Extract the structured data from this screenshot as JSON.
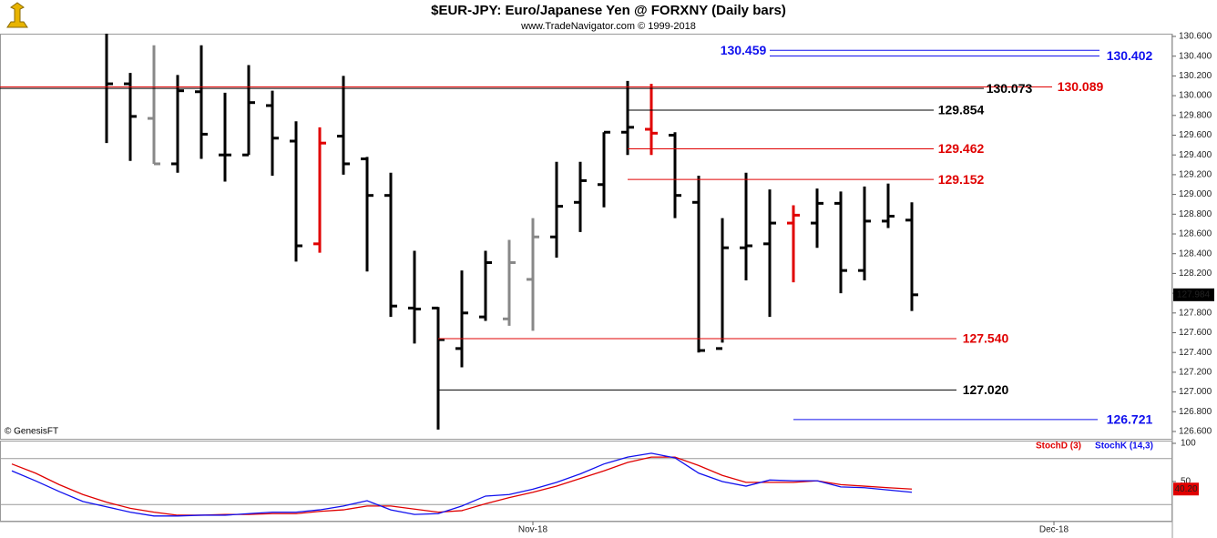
{
  "chart_data": {
    "type": "ohlc",
    "title": "$EUR-JPY:  Euro/Japanese Yen @ FORXNY  (Daily bars)",
    "subtitle": "www.TradeNavigator.com © 1999-2018",
    "credit": "© GenesisFT",
    "categories": [
      null,
      null,
      null,
      null,
      null,
      null,
      null,
      null,
      null,
      null,
      null,
      null,
      null,
      null,
      null,
      null,
      null,
      null,
      null,
      null,
      null,
      null,
      "Nov-18",
      null,
      null,
      null,
      null,
      null,
      null,
      null,
      null,
      null,
      null,
      null,
      null,
      null,
      null,
      null,
      null,
      null,
      null,
      null,
      null,
      null,
      "Dec-18",
      null,
      null,
      null,
      null
    ],
    "ylim": [
      126.6,
      130.6
    ],
    "yticks": [
      {
        "value": 126.6,
        "label": "126.600"
      },
      {
        "value": 126.8,
        "label": "126.800"
      },
      {
        "value": 127.0,
        "label": "127.000"
      },
      {
        "value": 127.2,
        "label": "127.200"
      },
      {
        "value": 127.4,
        "label": "127.400"
      },
      {
        "value": 127.6,
        "label": "127.600"
      },
      {
        "value": 127.8,
        "label": "127.800"
      },
      {
        "value": 128.0,
        "label": "128.000"
      },
      {
        "value": 128.2,
        "label": "128.200"
      },
      {
        "value": 128.4,
        "label": "128.400"
      },
      {
        "value": 128.6,
        "label": "128.600"
      },
      {
        "value": 128.8,
        "label": "128.800"
      },
      {
        "value": 129.0,
        "label": "129.000"
      },
      {
        "value": 129.2,
        "label": "129.200"
      },
      {
        "value": 129.4,
        "label": "129.400"
      },
      {
        "value": 129.6,
        "label": "129.600"
      },
      {
        "value": 129.8,
        "label": "129.800"
      },
      {
        "value": 130.0,
        "label": "130.000"
      },
      {
        "value": 130.2,
        "label": "130.200"
      },
      {
        "value": 130.4,
        "label": "130.400"
      },
      {
        "value": 130.6,
        "label": "130.600"
      }
    ],
    "ohlc": {
      "open": [
        null,
        null,
        null,
        null,
        null,
        130.12,
        129.77,
        129.31,
        130.04,
        129.4,
        129.4,
        129.9,
        129.54,
        128.5,
        129.59,
        129.36,
        128.99,
        127.85,
        127.85,
        127.44,
        127.76,
        127.74,
        128.14,
        128.57,
        128.92,
        129.1,
        129.63,
        129.66,
        129.6,
        128.92,
        127.44,
        128.46,
        128.5,
        128.71,
        128.71,
        128.91,
        128.23,
        128.73,
        128.74,
        null,
        null,
        null,
        null,
        null,
        null,
        null,
        null,
        null,
        null
      ],
      "high": [
        null,
        null,
        null,
        null,
        130.65,
        130.23,
        130.51,
        130.21,
        130.51,
        130.03,
        130.31,
        130.05,
        129.74,
        129.68,
        130.2,
        129.38,
        129.22,
        128.43,
        127.86,
        128.23,
        128.43,
        128.54,
        128.76,
        129.33,
        129.33,
        129.63,
        130.15,
        130.12,
        129.63,
        129.19,
        128.76,
        129.22,
        129.05,
        128.89,
        129.06,
        129.03,
        129.08,
        129.11,
        128.92,
        null,
        null,
        null,
        null,
        null,
        null,
        null,
        null,
        null,
        null
      ],
      "low": [
        null,
        null,
        null,
        null,
        129.52,
        129.34,
        129.31,
        129.22,
        129.36,
        129.13,
        129.4,
        129.19,
        128.32,
        128.41,
        129.2,
        128.22,
        127.76,
        127.49,
        126.62,
        127.25,
        127.72,
        127.67,
        127.62,
        128.36,
        128.62,
        128.87,
        129.4,
        129.4,
        128.76,
        127.4,
        127.5,
        128.13,
        127.76,
        128.11,
        128.46,
        128.0,
        128.13,
        128.66,
        127.82,
        null,
        null,
        null,
        null,
        null,
        null,
        null,
        null,
        null,
        null
      ],
      "close": [
        null,
        null,
        null,
        null,
        130.12,
        129.79,
        129.31,
        130.05,
        129.61,
        129.4,
        129.93,
        129.57,
        128.48,
        129.52,
        129.31,
        128.99,
        127.87,
        127.84,
        127.53,
        127.8,
        128.31,
        128.31,
        128.57,
        128.88,
        129.14,
        129.63,
        129.68,
        129.62,
        128.99,
        127.42,
        128.46,
        128.48,
        128.71,
        128.79,
        128.91,
        128.23,
        128.73,
        128.78,
        127.984,
        null,
        null,
        null,
        null,
        null,
        null,
        null,
        null,
        null,
        null
      ],
      "colors": [
        null,
        null,
        null,
        null,
        "#000",
        "#000",
        "#888",
        "#000",
        "#000",
        "#000",
        "#000",
        "#000",
        "#000",
        "#e00000",
        "#000",
        "#000",
        "#000",
        "#000",
        "#000",
        "#000",
        "#000",
        "#888",
        "#888",
        "#000",
        "#000",
        "#000",
        "#000",
        "#e00000",
        "#000",
        "#000",
        "#000",
        "#000",
        "#000",
        "#e00000",
        "#000",
        "#000",
        "#000",
        "#000",
        "#000",
        null,
        null,
        null,
        null,
        null,
        null,
        null,
        null,
        null,
        null
      ]
    },
    "levels": [
      {
        "value": 130.459,
        "label": "130.459",
        "color": "#1010ee"
      },
      {
        "value": 130.402,
        "label": "130.402",
        "color": "#1010ee"
      },
      {
        "value": 130.089,
        "label": "130.089",
        "color": "#e00000"
      },
      {
        "value": 130.073,
        "label": "130.073",
        "color": "#000000"
      },
      {
        "value": 129.854,
        "label": "129.854",
        "color": "#000000"
      },
      {
        "value": 129.462,
        "label": "129.462",
        "color": "#e00000"
      },
      {
        "value": 129.152,
        "label": "129.152",
        "color": "#e00000"
      },
      {
        "value": 127.54,
        "label": "127.540",
        "color": "#e00000"
      },
      {
        "value": 127.02,
        "label": "127.020",
        "color": "#000000"
      },
      {
        "value": 126.721,
        "label": "126.721",
        "color": "#1010ee"
      }
    ],
    "stoch": {
      "ylim": [
        0,
        100
      ],
      "yticks": [
        50,
        100
      ],
      "bands": [
        20,
        80
      ],
      "series": [
        {
          "name": "StochD (3)",
          "color": "#e00000",
          "values": [
            73,
            61,
            46,
            33,
            23,
            15,
            10,
            6,
            6,
            7,
            7,
            8,
            8,
            11,
            13,
            18,
            18,
            14,
            10,
            12,
            21,
            29,
            36,
            44,
            54,
            64,
            75,
            82,
            82,
            71,
            58,
            49,
            49,
            49,
            51,
            46,
            44,
            42,
            40.2,
            null,
            null,
            null,
            null,
            null,
            null,
            null,
            null,
            null,
            null
          ],
          "value_labels": [
            null,
            null,
            null,
            null,
            null,
            null,
            null,
            null,
            null,
            null,
            null,
            null,
            null,
            null,
            null,
            null,
            null,
            null,
            null,
            null,
            null,
            null,
            null,
            null,
            null,
            null,
            null,
            null,
            null,
            null,
            null,
            null,
            null,
            null,
            null,
            null,
            null,
            null,
            "40.20",
            null,
            null,
            null,
            null,
            null,
            null,
            null,
            null,
            null,
            null
          ]
        },
        {
          "name": "StochK (14,3)",
          "color": "#1010ee",
          "values": [
            64,
            51,
            37,
            24,
            17,
            10,
            5,
            5,
            6,
            6,
            8,
            10,
            10,
            13,
            18,
            25,
            13,
            7,
            8,
            18,
            31,
            33,
            40,
            49,
            60,
            73,
            82,
            87,
            81,
            61,
            50,
            44,
            52,
            51,
            51,
            43,
            42,
            39,
            36,
            null,
            null,
            null,
            null,
            null,
            null,
            null,
            null,
            null,
            null
          ]
        }
      ]
    }
  }
}
